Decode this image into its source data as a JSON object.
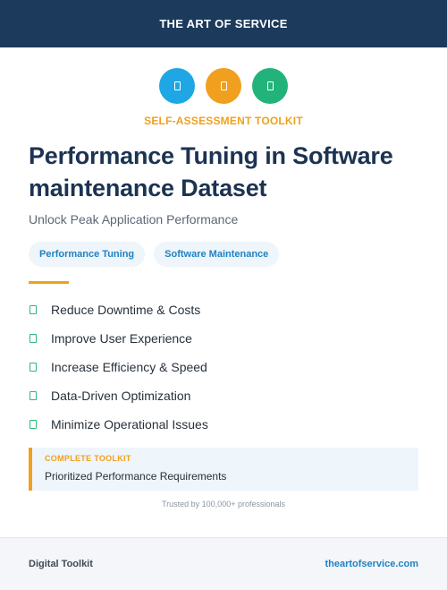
{
  "header": {
    "title": "THE ART OF SERVICE"
  },
  "icons": [
    {
      "name": "document-icon",
      "color": "#1ea7e4"
    },
    {
      "name": "document-icon",
      "color": "#f0a01e"
    },
    {
      "name": "document-icon",
      "color": "#22b37a"
    }
  ],
  "kicker": "SELF-ASSESSMENT TOOLKIT",
  "title": "Performance Tuning in Software maintenance Dataset",
  "subtitle": "Unlock Peak Application Performance",
  "tags": [
    "Performance Tuning",
    "Software Maintenance"
  ],
  "benefits": [
    "Reduce Downtime & Costs",
    "Improve User Experience",
    "Increase Efficiency & Speed",
    "Data-Driven Optimization",
    "Minimize Operational Issues"
  ],
  "callout": {
    "kicker": "COMPLETE TOOLKIT",
    "text": "Prioritized Performance Requirements"
  },
  "trust": "Trusted by 100,000+ professionals",
  "footer": {
    "left": "Digital Toolkit",
    "right": "theartofservice.com"
  }
}
